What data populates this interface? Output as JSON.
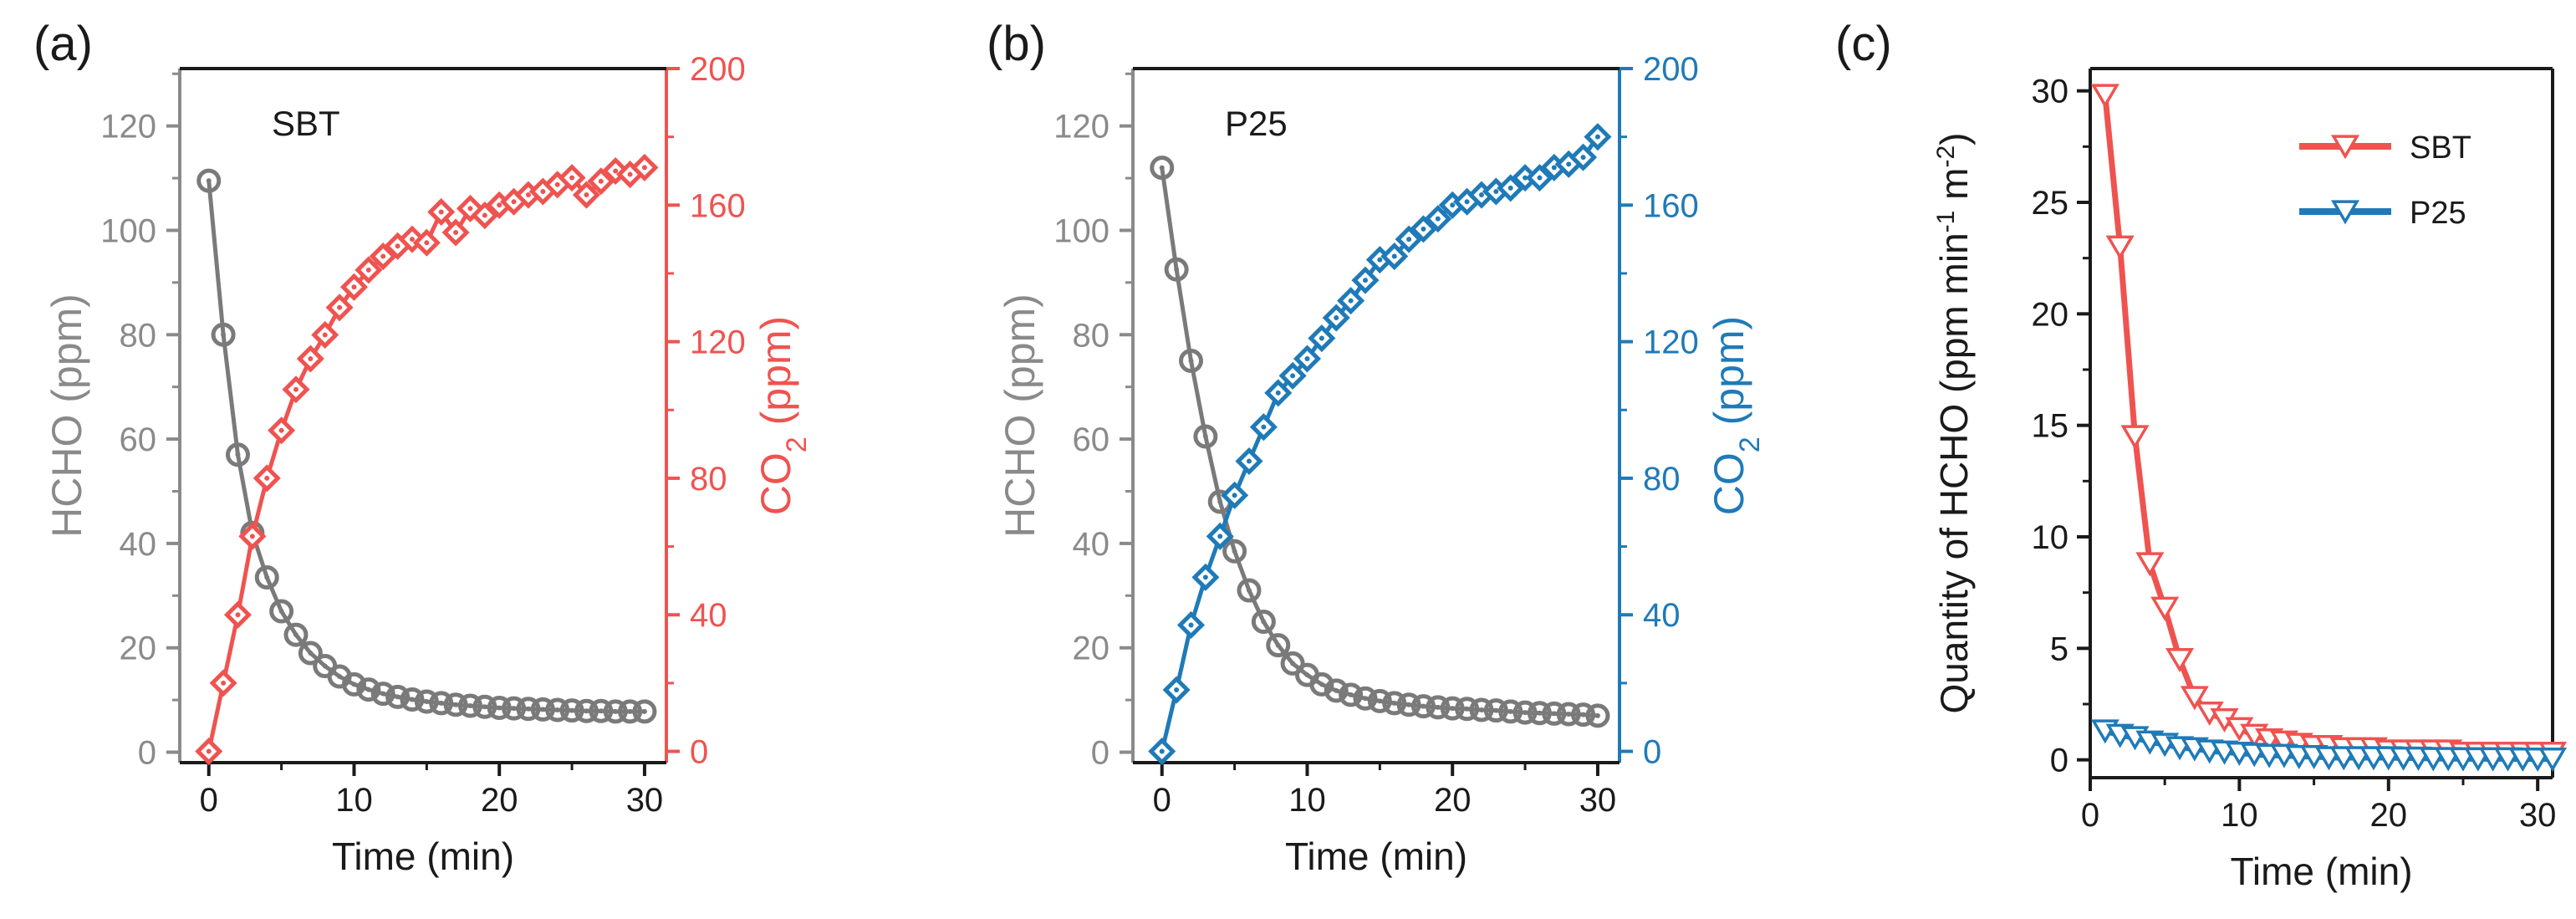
{
  "colors": {
    "hcho": "#7a7a7a",
    "sbt": "#ef5350",
    "p25": "#1f7ab8",
    "axis": "#1a1a1a",
    "hcho_axis": "#8a8a8a"
  },
  "chart_data": [
    {
      "type": "line",
      "panel_label": "(a)",
      "annotation": "SBT",
      "xlabel": "Time (min)",
      "ylabel_left": "HCHO (ppm)",
      "ylabel_right_prefix": "CO",
      "ylabel_right_sub": "2",
      "ylabel_right_suffix": " (ppm)",
      "xlim": [
        -2,
        31.5
      ],
      "ylim_left": [
        -2,
        131
      ],
      "ylim_right": [
        -3.3,
        200
      ],
      "x_ticks": [
        0,
        10,
        20,
        30
      ],
      "x_tick_labels": [
        "0",
        "10",
        "20",
        "30"
      ],
      "y_left_ticks": [
        0,
        20,
        40,
        60,
        80,
        100,
        120
      ],
      "y_left_tick_labels": [
        "0",
        "20",
        "40",
        "60",
        "80",
        "100",
        "120"
      ],
      "y_right_ticks": [
        0,
        40,
        80,
        120,
        160,
        200
      ],
      "y_right_tick_labels": [
        "0",
        "40",
        "80",
        "120",
        "160",
        "200"
      ],
      "x": [
        0,
        1,
        2,
        3,
        4,
        5,
        6,
        7,
        8,
        9,
        10,
        11,
        12,
        13,
        14,
        15,
        16,
        17,
        18,
        19,
        20,
        21,
        22,
        23,
        24,
        25,
        26,
        27,
        28,
        29,
        30
      ],
      "series": [
        {
          "axis": "left",
          "marker": "circle",
          "values": [
            109.5,
            80,
            57,
            42,
            33.5,
            27,
            22.5,
            19,
            16.5,
            14.5,
            13,
            12,
            11.2,
            10.6,
            10.1,
            9.7,
            9.4,
            9.1,
            8.9,
            8.7,
            8.5,
            8.4,
            8.3,
            8.2,
            8.1,
            8.0,
            7.9,
            7.9,
            7.8,
            7.8,
            7.8
          ]
        },
        {
          "axis": "right",
          "marker": "diamond",
          "values": [
            0,
            20,
            40,
            63,
            80,
            94,
            106,
            115,
            122,
            130,
            136,
            141,
            145,
            148,
            150,
            149,
            158,
            152,
            159,
            157,
            160,
            161,
            163,
            164,
            166,
            168,
            163,
            167,
            170,
            169,
            171
          ]
        }
      ]
    },
    {
      "type": "line",
      "panel_label": "(b)",
      "annotation": "P25",
      "xlabel": "Time (min)",
      "ylabel_left": "HCHO (ppm)",
      "ylabel_right_prefix": "CO",
      "ylabel_right_sub": "2",
      "ylabel_right_suffix": " (ppm)",
      "xlim": [
        -2,
        31.5
      ],
      "ylim_left": [
        -2,
        131
      ],
      "ylim_right": [
        -3.3,
        200
      ],
      "x_ticks": [
        0,
        10,
        20,
        30
      ],
      "x_tick_labels": [
        "0",
        "10",
        "20",
        "30"
      ],
      "y_left_ticks": [
        0,
        20,
        40,
        60,
        80,
        100,
        120
      ],
      "y_left_tick_labels": [
        "0",
        "20",
        "40",
        "60",
        "80",
        "100",
        "120"
      ],
      "y_right_ticks": [
        0,
        40,
        80,
        120,
        160,
        200
      ],
      "y_right_tick_labels": [
        "0",
        "40",
        "80",
        "120",
        "160",
        "200"
      ],
      "x": [
        0,
        1,
        2,
        3,
        4,
        5,
        6,
        7,
        8,
        9,
        10,
        11,
        12,
        13,
        14,
        15,
        16,
        17,
        18,
        19,
        20,
        21,
        22,
        23,
        24,
        25,
        26,
        27,
        28,
        29,
        30
      ],
      "series": [
        {
          "axis": "left",
          "marker": "circle",
          "values": [
            112,
            92.5,
            75,
            60.5,
            48,
            38.5,
            31,
            25,
            20.5,
            17,
            14.8,
            13,
            11.8,
            11,
            10.3,
            9.8,
            9.4,
            9.1,
            8.8,
            8.6,
            8.4,
            8.3,
            8.1,
            8.0,
            7.8,
            7.6,
            7.5,
            7.4,
            7.3,
            7.2,
            7.0
          ]
        },
        {
          "axis": "right",
          "marker": "diamond",
          "values": [
            0,
            18,
            37,
            51,
            63,
            75,
            85,
            95,
            105,
            110,
            115,
            121,
            127,
            132,
            138,
            144,
            145,
            150,
            153,
            156,
            160,
            161,
            163,
            164,
            165,
            168,
            168,
            171,
            172,
            174,
            180
          ]
        }
      ]
    },
    {
      "type": "line",
      "panel_label": "(c)",
      "xlabel": "Time (min)",
      "ylabel_prefix": "Quantity of HCHO (ppm min",
      "ylabel_sup1": "-1",
      "ylabel_mid": " m",
      "ylabel_sup2": "-2",
      "ylabel_suffix": ")",
      "xlim": [
        0,
        31
      ],
      "ylim": [
        -0.8,
        31
      ],
      "x_ticks": [
        0,
        10,
        20,
        30
      ],
      "x_tick_labels": [
        "0",
        "10",
        "20",
        "30"
      ],
      "y_ticks": [
        0,
        5,
        10,
        15,
        20,
        25,
        30
      ],
      "y_tick_labels": [
        "0",
        "5",
        "10",
        "15",
        "20",
        "25",
        "30"
      ],
      "legend": "top-right",
      "x": [
        1,
        2,
        3,
        4,
        5,
        6,
        7,
        8,
        9,
        10,
        11,
        12,
        13,
        14,
        15,
        16,
        17,
        18,
        19,
        20,
        21,
        22,
        23,
        24,
        25,
        26,
        27,
        28,
        29,
        30,
        31
      ],
      "series": [
        {
          "name": "SBT",
          "values": [
            29.8,
            23,
            14.5,
            8.8,
            6.8,
            4.5,
            2.8,
            2.1,
            1.8,
            1.4,
            1.1,
            0.9,
            0.8,
            0.7,
            0.6,
            0.6,
            0.5,
            0.5,
            0.5,
            0.4,
            0.4,
            0.4,
            0.4,
            0.4,
            0.3,
            0.3,
            0.3,
            0.3,
            0.3,
            0.3,
            0.3
          ]
        },
        {
          "name": "P25",
          "values": [
            1.3,
            1.1,
            1.0,
            0.8,
            0.7,
            0.55,
            0.5,
            0.4,
            0.35,
            0.3,
            0.25,
            0.2,
            0.2,
            0.15,
            0.15,
            0.1,
            0.1,
            0.1,
            0.1,
            0.1,
            0.08,
            0.08,
            0.06,
            0.06,
            0.05,
            0.05,
            0.05,
            0.05,
            0.04,
            0.04,
            0.04
          ]
        }
      ]
    }
  ]
}
